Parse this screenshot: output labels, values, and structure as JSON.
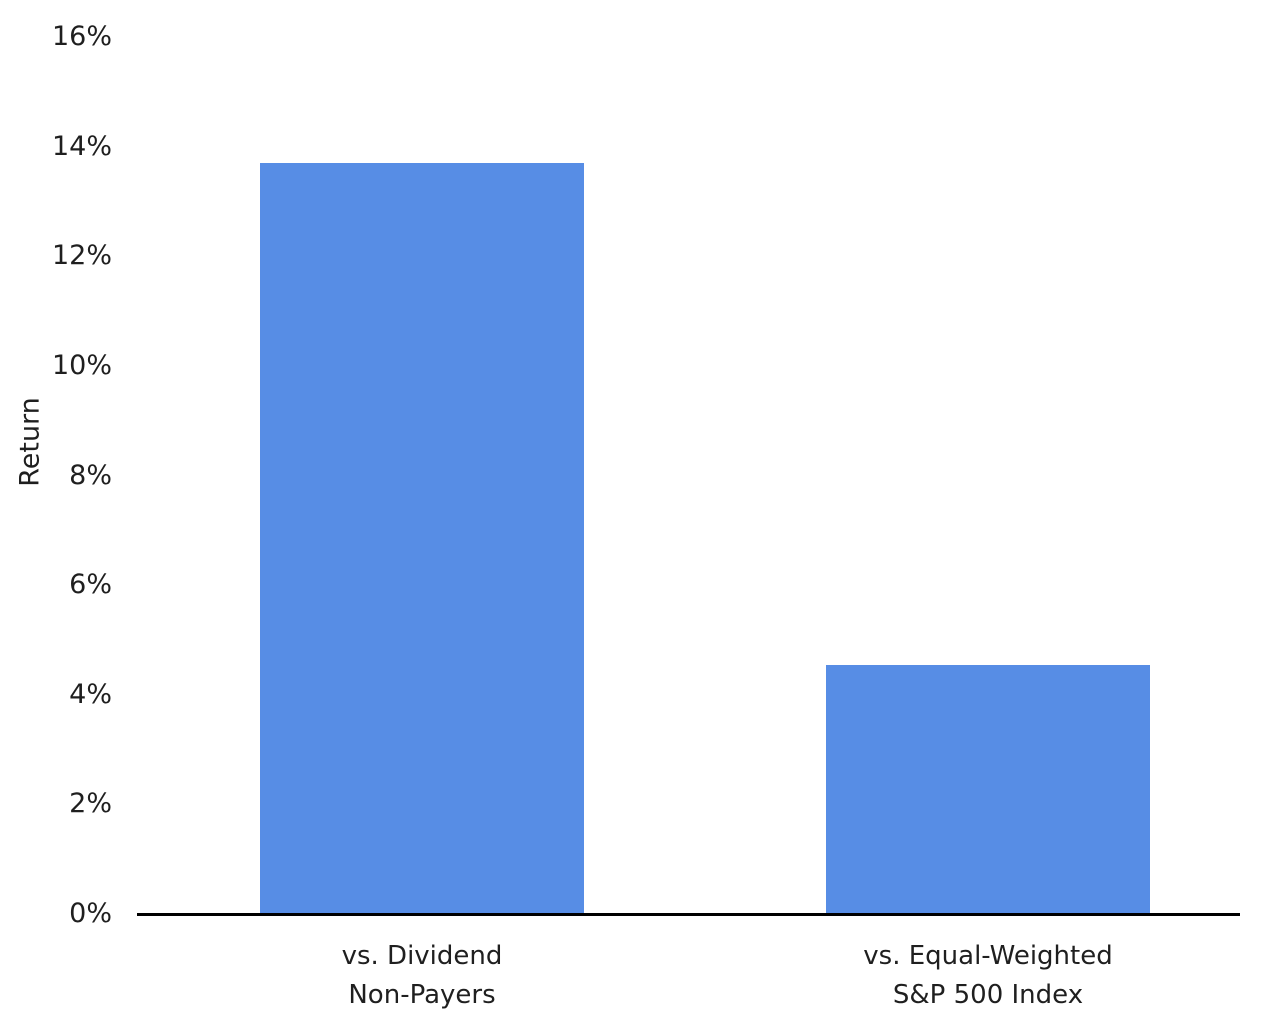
{
  "chart_data": {
    "type": "bar",
    "title": "",
    "xlabel": "",
    "ylabel": "Return",
    "categories": [
      "vs. Dividend Non-Payers",
      "vs. Equal-Weighted S&P 500 Index"
    ],
    "category_lines": [
      [
        "vs. Dividend",
        "Non-Payers"
      ],
      [
        "vs. Equal-Weighted",
        "S&P 500 Index"
      ]
    ],
    "values": [
      13.7,
      4.55
    ],
    "value_unit": "%",
    "ylim": [
      0,
      16
    ],
    "ytick_step": 2,
    "ytick_labels": [
      "0%",
      "2%",
      "4%",
      "6%",
      "8%",
      "10%",
      "12%",
      "14%",
      "16%"
    ],
    "grid": false,
    "legend": null,
    "bar_color": "#578de5",
    "axis_line_color": "#000000",
    "text_color": "#1f1f1f"
  }
}
